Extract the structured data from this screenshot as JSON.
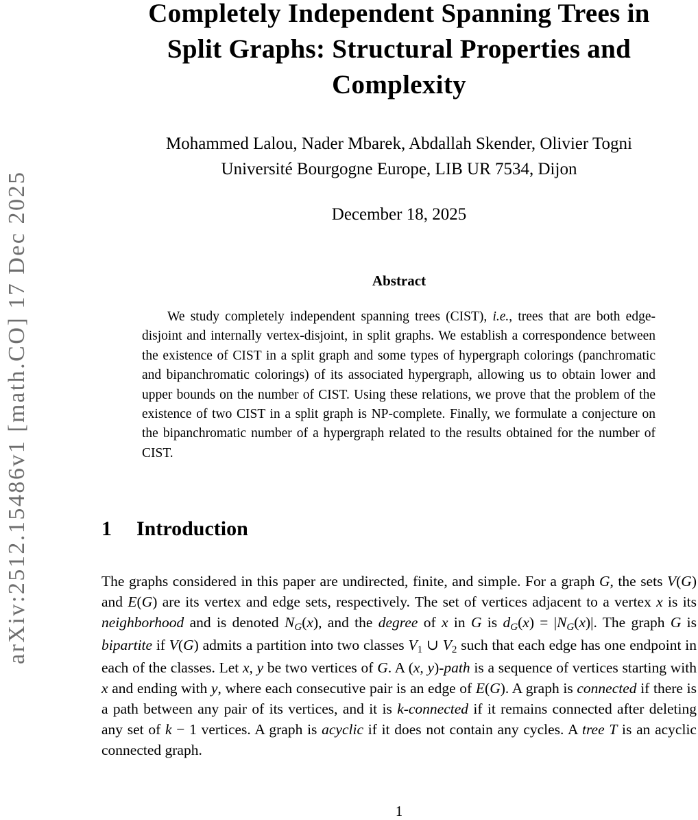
{
  "watermark": {
    "text": "arXiv:2512.15486v1  [math.CO]  17 Dec 2025",
    "color": "#6e6e6e"
  },
  "title": {
    "full": "Completely Independent Spanning Trees in Split Graphs: Structural Properties and Complexity",
    "lines": [
      "Completely Independent Spanning Trees in",
      "Split Graphs: Structural Properties and",
      "Complexity"
    ]
  },
  "authors": "Mohammed Lalou, Nader Mbarek, Abdallah Skender, Olivier Togni",
  "affiliation": "Université Bourgogne Europe, LIB UR 7534, Dijon",
  "date": "December 18, 2025",
  "abstract": {
    "heading": "Abstract",
    "runs": [
      {
        "t": "We study completely independent spanning trees (CIST), "
      },
      {
        "t": "i.e.",
        "s": "i"
      },
      {
        "t": ", trees that are both edge-disjoint and internally vertex-disjoint, in split graphs.  We establish a correspondence between the existence of CIST in a split graph and some types of hypergraph colorings (panchromatic and bipanchromatic colorings) of its associated hypergraph, allowing us to obtain lower and upper bounds on the number of CIST. Using these relations, we prove that the problem of the existence of two CIST in a split graph is NP-complete. Finally, we formulate a conjecture on the bipanchromatic number of a hypergraph related to the results obtained for the number of CIST."
      }
    ]
  },
  "section": {
    "number": "1",
    "title": "Introduction"
  },
  "intro": {
    "runs": [
      {
        "t": "The graphs considered in this paper are undirected, finite, and simple.  For a graph "
      },
      {
        "t": "G",
        "s": "i"
      },
      {
        "t": ", the sets "
      },
      {
        "t": "V",
        "s": "i"
      },
      {
        "t": "("
      },
      {
        "t": "G",
        "s": "i"
      },
      {
        "t": ") and "
      },
      {
        "t": "E",
        "s": "i"
      },
      {
        "t": "("
      },
      {
        "t": "G",
        "s": "i"
      },
      {
        "t": ") are its vertex and edge sets, respectively.  The set of vertices adjacent to a vertex "
      },
      {
        "t": "x",
        "s": "i"
      },
      {
        "t": " is its "
      },
      {
        "t": "neighborhood",
        "s": "i"
      },
      {
        "t": " and is denoted "
      },
      {
        "t": "N",
        "s": "i"
      },
      {
        "t": "G",
        "s": "subi"
      },
      {
        "t": "("
      },
      {
        "t": "x",
        "s": "i"
      },
      {
        "t": "), and the "
      },
      {
        "t": "degree",
        "s": "i"
      },
      {
        "t": " of "
      },
      {
        "t": "x",
        "s": "i"
      },
      {
        "t": " in "
      },
      {
        "t": "G",
        "s": "i"
      },
      {
        "t": " is "
      },
      {
        "t": "d",
        "s": "i"
      },
      {
        "t": "G",
        "s": "subi"
      },
      {
        "t": "("
      },
      {
        "t": "x",
        "s": "i"
      },
      {
        "t": ") = |"
      },
      {
        "t": "N",
        "s": "i"
      },
      {
        "t": "G",
        "s": "subi"
      },
      {
        "t": "("
      },
      {
        "t": "x",
        "s": "i"
      },
      {
        "t": ")|.  The graph "
      },
      {
        "t": "G",
        "s": "i"
      },
      {
        "t": " is "
      },
      {
        "t": "bipartite",
        "s": "i"
      },
      {
        "t": " if "
      },
      {
        "t": "V",
        "s": "i"
      },
      {
        "t": "("
      },
      {
        "t": "G",
        "s": "i"
      },
      {
        "t": ") admits a partition into two classes "
      },
      {
        "t": "V",
        "s": "i"
      },
      {
        "t": "1",
        "s": "sub"
      },
      {
        "t": " ∪ "
      },
      {
        "t": "V",
        "s": "i"
      },
      {
        "t": "2",
        "s": "sub"
      },
      {
        "t": " such that each edge has one endpoint in each of the classes.  Let "
      },
      {
        "t": "x, y",
        "s": "i"
      },
      {
        "t": " be two vertices of "
      },
      {
        "t": "G",
        "s": "i"
      },
      {
        "t": ".  A ("
      },
      {
        "t": "x, y",
        "s": "i"
      },
      {
        "t": ")-"
      },
      {
        "t": "path",
        "s": "i"
      },
      {
        "t": " is a sequence of vertices starting with "
      },
      {
        "t": "x",
        "s": "i"
      },
      {
        "t": " and ending with "
      },
      {
        "t": "y",
        "s": "i"
      },
      {
        "t": ", where each consecutive pair is an edge of "
      },
      {
        "t": "E",
        "s": "i"
      },
      {
        "t": "("
      },
      {
        "t": "G",
        "s": "i"
      },
      {
        "t": ").  A graph is "
      },
      {
        "t": "connected",
        "s": "i"
      },
      {
        "t": " if there is a path between any pair of its vertices, and it is "
      },
      {
        "t": "k-connected",
        "s": "i"
      },
      {
        "t": " if it remains connected after deleting any set of "
      },
      {
        "t": "k",
        "s": "i"
      },
      {
        "t": " − 1 vertices.  A graph is "
      },
      {
        "t": "acyclic",
        "s": "i"
      },
      {
        "t": " if it does not contain any cycles.  A "
      },
      {
        "t": "tree T",
        "s": "i"
      },
      {
        "t": " is an acyclic connected graph."
      }
    ]
  },
  "page_number": "1"
}
